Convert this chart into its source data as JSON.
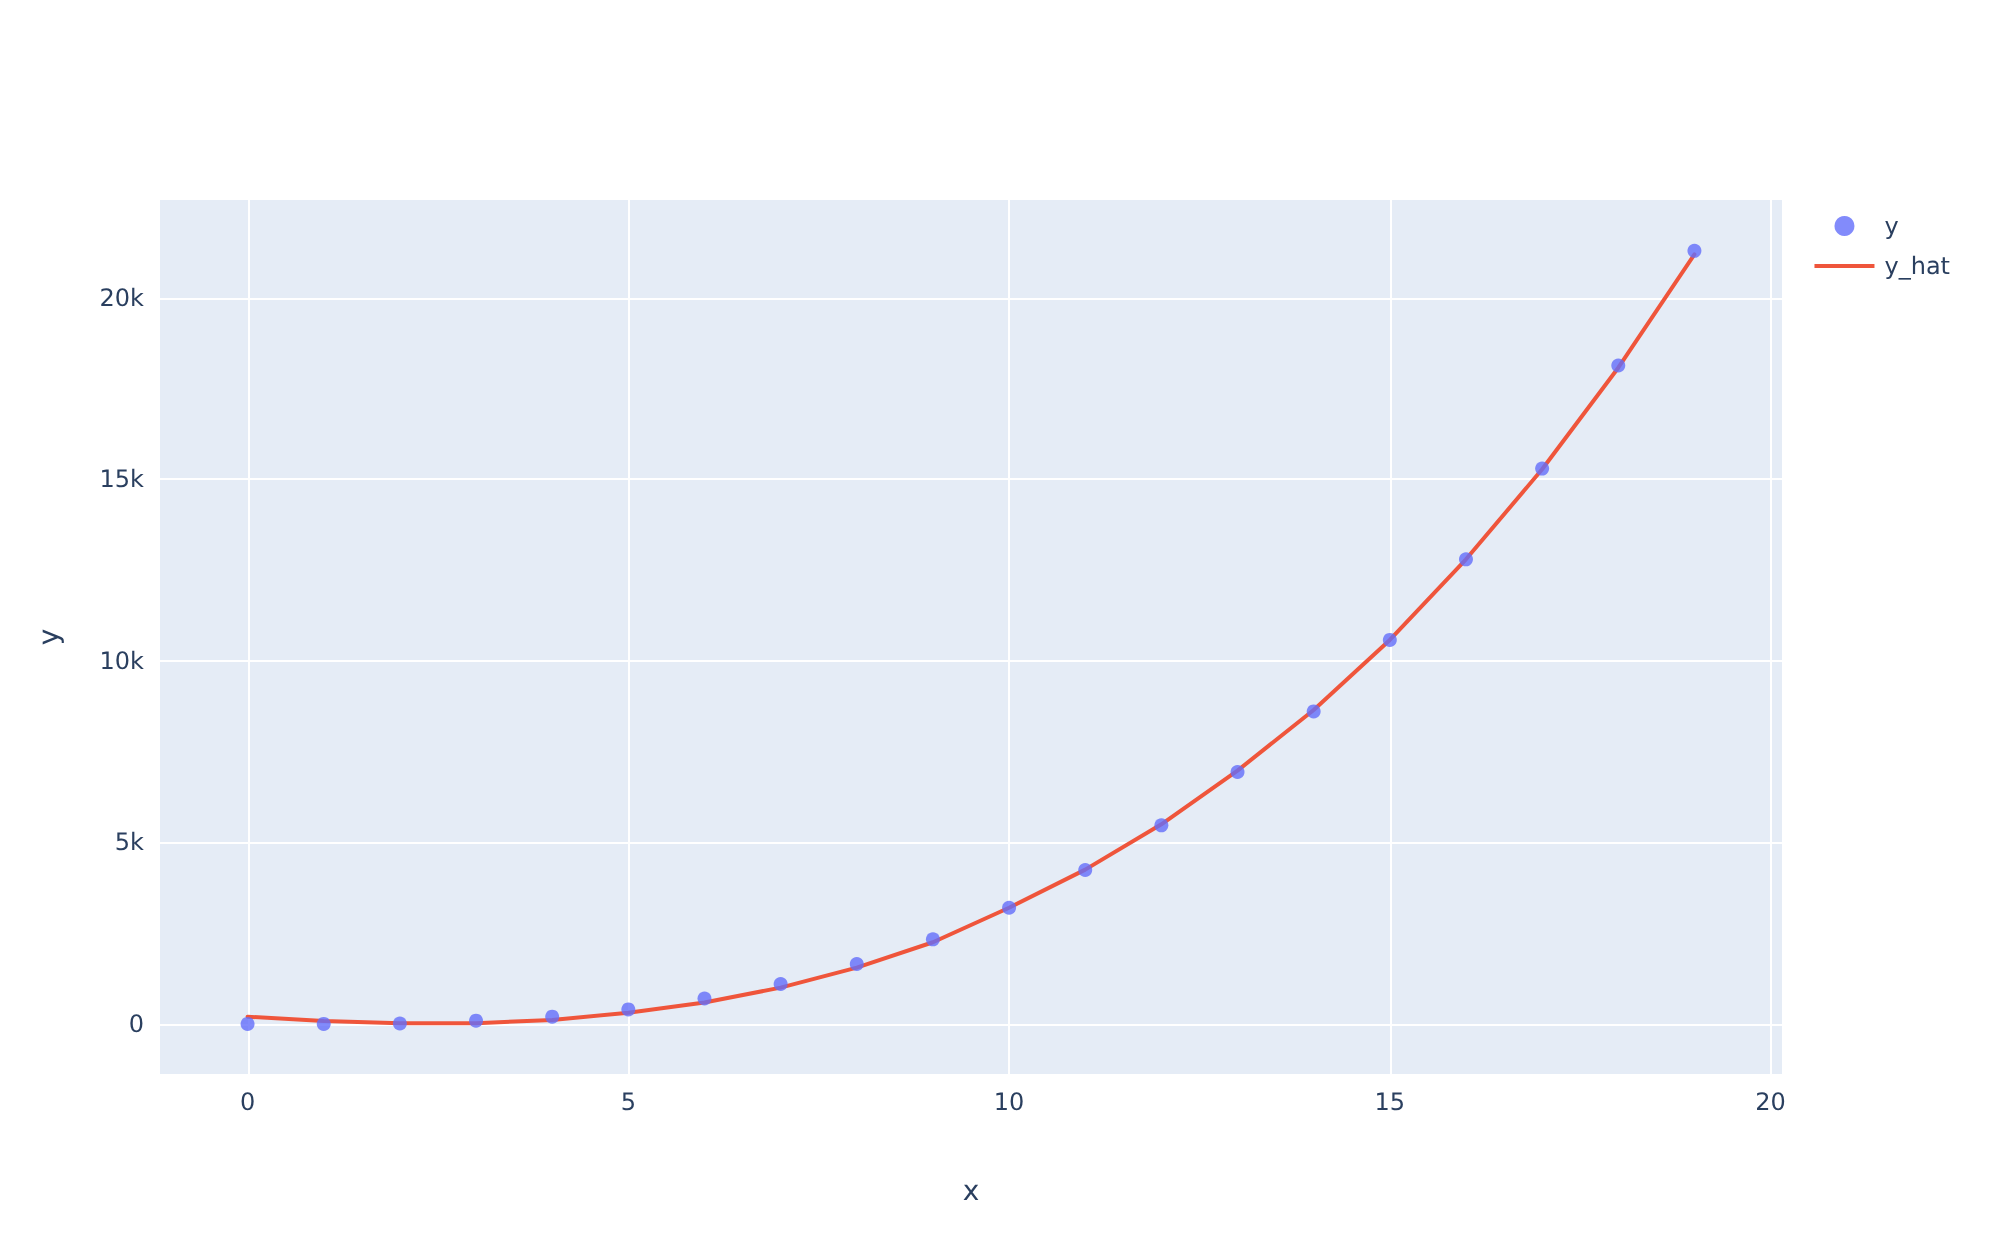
{
  "chart_data": {
    "type": "scatter",
    "xlabel": "x",
    "ylabel": "y",
    "x": [
      0,
      1,
      2,
      3,
      4,
      5,
      6,
      7,
      8,
      9,
      10,
      11,
      12,
      13,
      14,
      15,
      16,
      17,
      18,
      19
    ],
    "series": [
      {
        "name": "y",
        "color": "#636efa",
        "marker": "circle",
        "values": [
          0,
          0,
          10,
          90,
          200,
          400,
          700,
          1100,
          1650,
          2330,
          3200,
          4240,
          5470,
          6940,
          8610,
          10580,
          12800,
          15300,
          18140,
          21300
        ]
      },
      {
        "name": "y_hat",
        "type": "line",
        "color": "#ef553b",
        "marker": "none",
        "line_style": "solid",
        "values": [
          200,
          80,
          20,
          20,
          110,
          310,
          590,
          1000,
          1550,
          2250,
          3200,
          4250,
          5500,
          6980,
          8650,
          10580,
          12800,
          15280,
          18080,
          21200
        ]
      }
    ],
    "xlim": [
      -1.15,
      20.15
    ],
    "xticks": [
      0,
      5,
      10,
      15,
      20
    ],
    "ylim": [
      -1380,
      22700
    ],
    "yticks": [
      0,
      {
        "value": 5000,
        "label": "5k"
      },
      {
        "value": 10000,
        "label": "10k"
      },
      {
        "value": 15000,
        "label": "15k"
      },
      {
        "value": 20000,
        "label": "20k"
      }
    ],
    "grid": true,
    "legend": "top right"
  }
}
